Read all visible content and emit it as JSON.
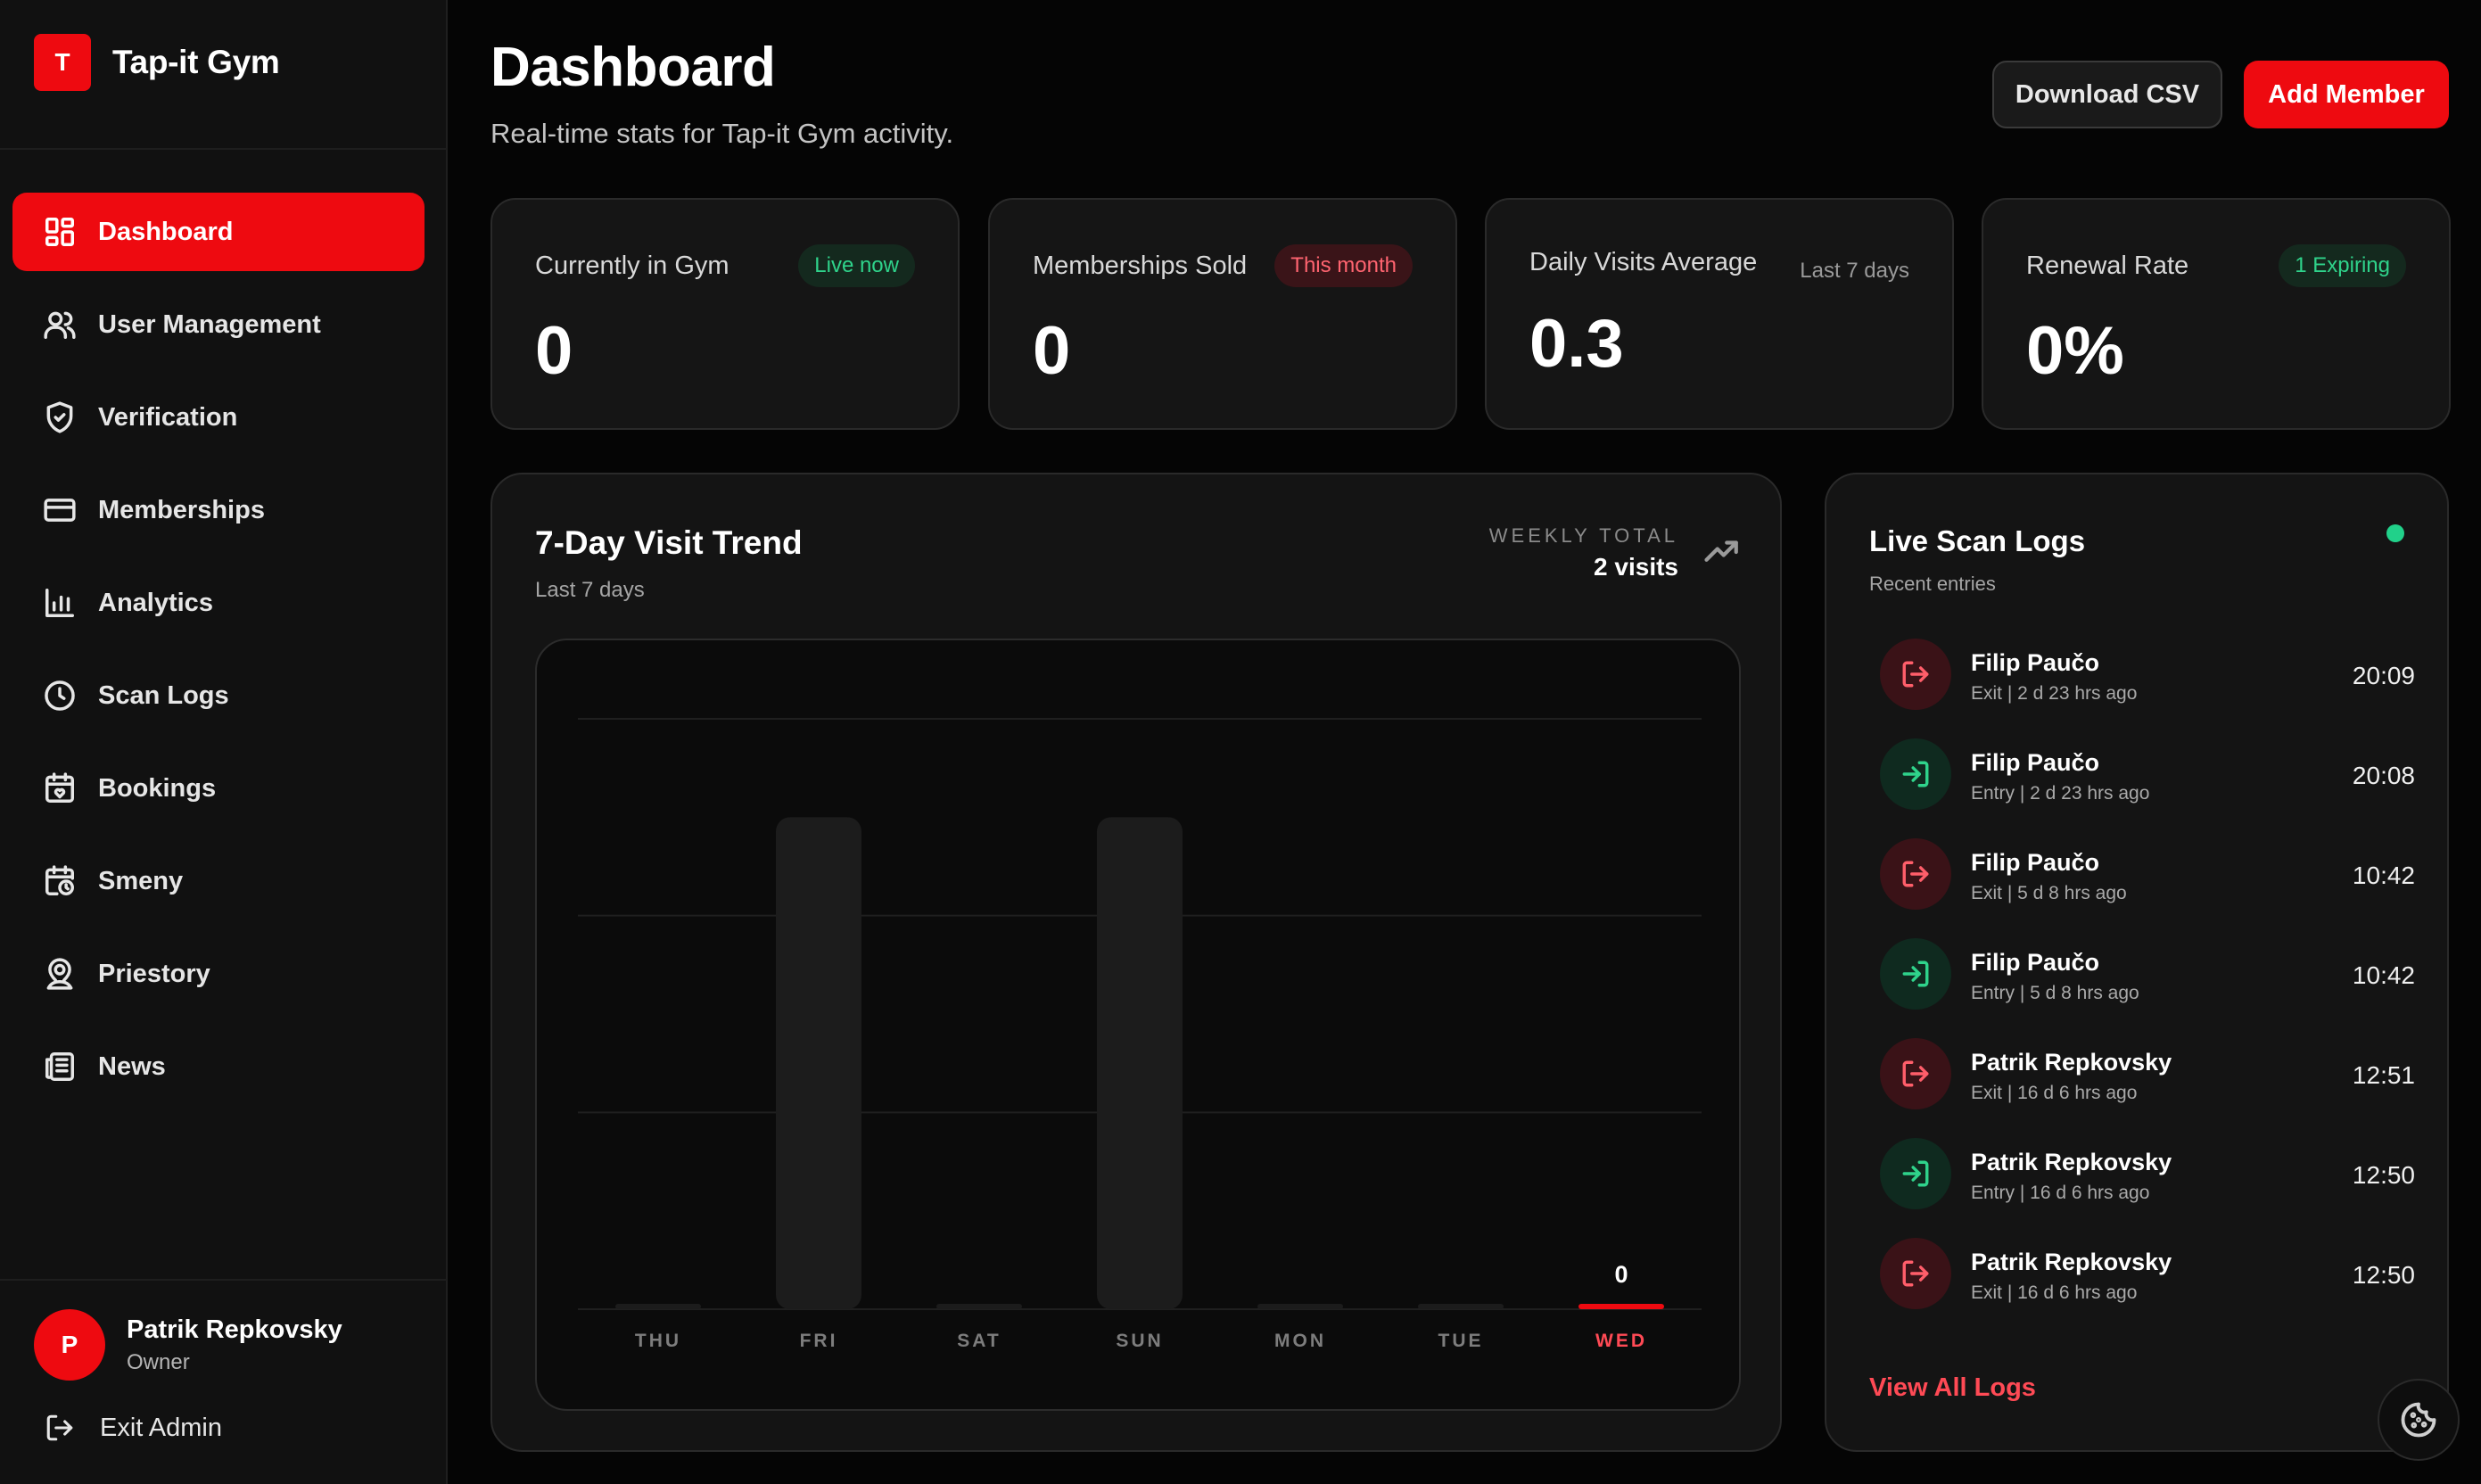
{
  "brand": {
    "logo_letter": "T",
    "name": "Tap-it Gym"
  },
  "nav": [
    {
      "label": "Dashboard",
      "icon": "dashboard-icon",
      "active": true
    },
    {
      "label": "User Management",
      "icon": "users-icon",
      "active": false
    },
    {
      "label": "Verification",
      "icon": "shield-check-icon",
      "active": false
    },
    {
      "label": "Memberships",
      "icon": "credit-card-icon",
      "active": false
    },
    {
      "label": "Analytics",
      "icon": "bar-chart-icon",
      "active": false
    },
    {
      "label": "Scan Logs",
      "icon": "clock-icon",
      "active": false
    },
    {
      "label": "Bookings",
      "icon": "calendar-heart-icon",
      "active": false
    },
    {
      "label": "Smeny",
      "icon": "calendar-clock-icon",
      "active": false
    },
    {
      "label": "Priestory",
      "icon": "map-pin-user-icon",
      "active": false
    },
    {
      "label": "News",
      "icon": "newspaper-icon",
      "active": false
    }
  ],
  "user": {
    "initial": "P",
    "name": "Patrik Repkovsky",
    "role": "Owner",
    "exit_label": "Exit Admin"
  },
  "header": {
    "title": "Dashboard",
    "subtitle": "Real-time stats for Tap-it Gym activity.",
    "download_label": "Download CSV",
    "add_label": "Add Member"
  },
  "stats": [
    {
      "label": "Currently in Gym",
      "badge": "Live now",
      "badge_style": "green",
      "value": "0"
    },
    {
      "label": "Memberships Sold",
      "badge": "This month",
      "badge_style": "red",
      "value": "0"
    },
    {
      "label": "Daily Visits Average",
      "badge": "Last 7 days",
      "badge_style": "plain",
      "value": "0.3"
    },
    {
      "label": "Renewal Rate",
      "badge": "1 Expiring",
      "badge_style": "green",
      "value": "0%"
    }
  ],
  "trend": {
    "title": "7-Day Visit Trend",
    "subtitle": "Last 7 days",
    "weekly_label": "WEEKLY TOTAL",
    "weekly_value": "2 visits",
    "accent_color": "#ee0a10",
    "highlight_value_label": "0"
  },
  "chart_data": {
    "type": "bar",
    "categories": [
      "THU",
      "FRI",
      "SAT",
      "SUN",
      "MON",
      "TUE",
      "WED"
    ],
    "values": [
      0,
      1,
      0,
      1,
      0,
      0,
      0
    ],
    "highlight_index": 6,
    "ylim": [
      0,
      1.2
    ],
    "grid": true
  },
  "logs": {
    "title": "Live Scan Logs",
    "subtitle": "Recent entries",
    "view_all_label": "View All Logs",
    "entries": [
      {
        "name": "Filip Paučo",
        "meta": "Exit | 2 d 23 hrs ago",
        "time": "20:09",
        "type": "exit"
      },
      {
        "name": "Filip Paučo",
        "meta": "Entry | 2 d 23 hrs ago",
        "time": "20:08",
        "type": "entry"
      },
      {
        "name": "Filip Paučo",
        "meta": "Exit | 5 d 8 hrs ago",
        "time": "10:42",
        "type": "exit"
      },
      {
        "name": "Filip Paučo",
        "meta": "Entry | 5 d 8 hrs ago",
        "time": "10:42",
        "type": "entry"
      },
      {
        "name": "Patrik Repkovsky",
        "meta": "Exit | 16 d 6 hrs ago",
        "time": "12:51",
        "type": "exit"
      },
      {
        "name": "Patrik Repkovsky",
        "meta": "Entry | 16 d 6 hrs ago",
        "time": "12:50",
        "type": "entry"
      },
      {
        "name": "Patrik Repkovsky",
        "meta": "Exit | 16 d 6 hrs ago",
        "time": "12:50",
        "type": "exit"
      }
    ]
  },
  "colors": {
    "accent": "#ee0a10",
    "success": "#21d18a",
    "danger": "#ff5e6a"
  }
}
